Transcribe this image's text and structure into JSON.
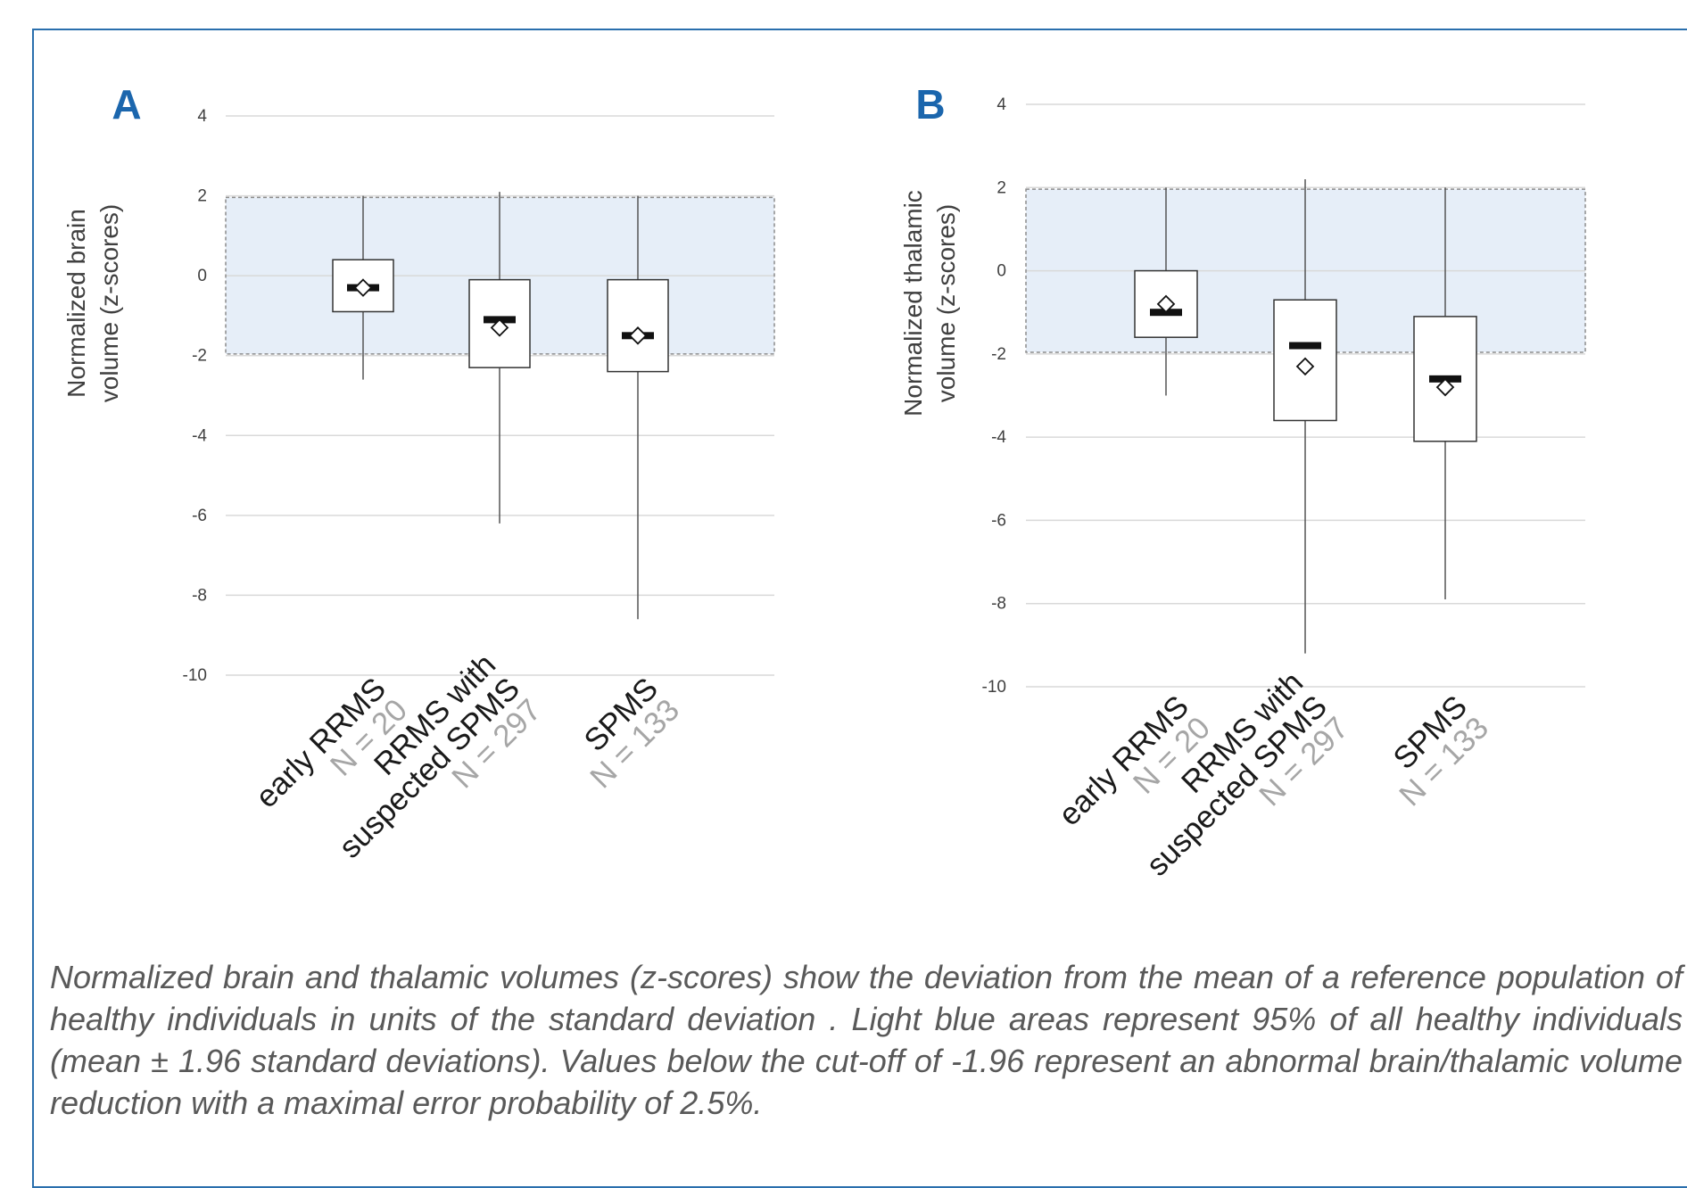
{
  "chart_data": [
    {
      "type": "box",
      "panel": "A",
      "ylabel": "Normalized brain volume (z-scores)",
      "ylabel_lines": [
        "Normalized brain",
        "volume (z-scores)"
      ],
      "yticks": [
        "4",
        "2",
        "0",
        "-2",
        "-4",
        "-6",
        "-8",
        "-10"
      ],
      "ylim": [
        -10,
        4
      ],
      "reference_band": [
        -1.96,
        1.96
      ],
      "categories": [
        {
          "name_lines": [
            "early RRMS"
          ],
          "n": "N = 20"
        },
        {
          "name_lines": [
            "RRMS with",
            "suspected SPMS"
          ],
          "n": "N = 297"
        },
        {
          "name_lines": [
            "SPMS"
          ],
          "n": "N = 133"
        }
      ],
      "boxes": [
        {
          "whisker_low": -2.6,
          "q1": -0.9,
          "median": -0.3,
          "mean": -0.3,
          "q3": 0.4,
          "whisker_high": 2.0
        },
        {
          "whisker_low": -6.2,
          "q1": -2.3,
          "median": -1.1,
          "mean": -1.3,
          "q3": -0.1,
          "whisker_high": 2.1
        },
        {
          "whisker_low": -8.6,
          "q1": -2.4,
          "median": -1.5,
          "mean": -1.5,
          "q3": -0.1,
          "whisker_high": 2.0
        }
      ]
    },
    {
      "type": "box",
      "panel": "B",
      "ylabel": "Normalized thalamic volume (z-scores)",
      "ylabel_lines": [
        "Normalized thalamic",
        "volume (z-scores)"
      ],
      "yticks": [
        "4",
        "2",
        "0",
        "-2",
        "-4",
        "-6",
        "-8",
        "-10"
      ],
      "ylim": [
        -10,
        4
      ],
      "reference_band": [
        -1.96,
        1.96
      ],
      "categories": [
        {
          "name_lines": [
            "early RRMS"
          ],
          "n": "N = 20"
        },
        {
          "name_lines": [
            "RRMS with",
            "suspected SPMS"
          ],
          "n": "N = 297"
        },
        {
          "name_lines": [
            "SPMS"
          ],
          "n": "N = 133"
        }
      ],
      "boxes": [
        {
          "whisker_low": -3.0,
          "q1": -1.6,
          "median": -1.0,
          "mean": -0.8,
          "q3": 0.0,
          "whisker_high": 2.0
        },
        {
          "whisker_low": -9.2,
          "q1": -3.6,
          "median": -1.8,
          "mean": -2.3,
          "q3": -0.7,
          "whisker_high": 2.2
        },
        {
          "whisker_low": -7.9,
          "q1": -4.1,
          "median": -2.6,
          "mean": -2.8,
          "q3": -1.1,
          "whisker_high": 2.0
        }
      ]
    }
  ],
  "caption": "Normalized brain and thalamic volumes (z-scores) show the deviation from the mean of a reference population of healthy individuals in units of the standard deviation . Light blue areas represent 95% of all healthy individuals (mean ± 1.96 standard deviations). Values below the cut-off of -1.96 represent an abnormal brain/thalamic volume reduction with a maximal error probability of  2.5%.",
  "colors": {
    "band": "#e6eef8",
    "frame": "#2a6fad",
    "panel_letter": "#1b66ad",
    "grid": "#d9d9d9"
  }
}
